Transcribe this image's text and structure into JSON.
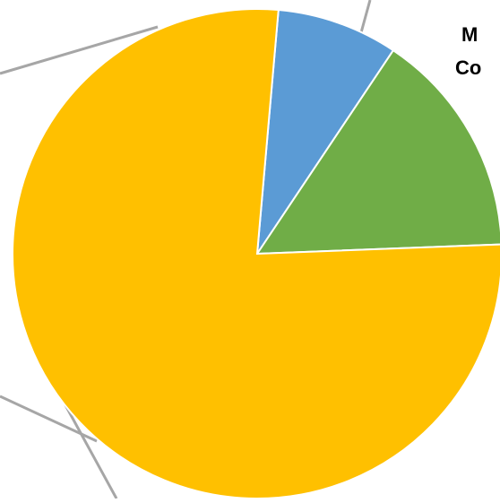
{
  "chart_data": {
    "type": "pie",
    "note_partial_labels": true,
    "slices": [
      {
        "value": 8,
        "color": "#5B9BD5"
      },
      {
        "value": 15,
        "color": "#70AD47"
      },
      {
        "value": 77,
        "color": "#FFC000"
      }
    ],
    "edge_text": [
      "M",
      "Co"
    ],
    "leader_line_color": "#A6A6A6"
  }
}
